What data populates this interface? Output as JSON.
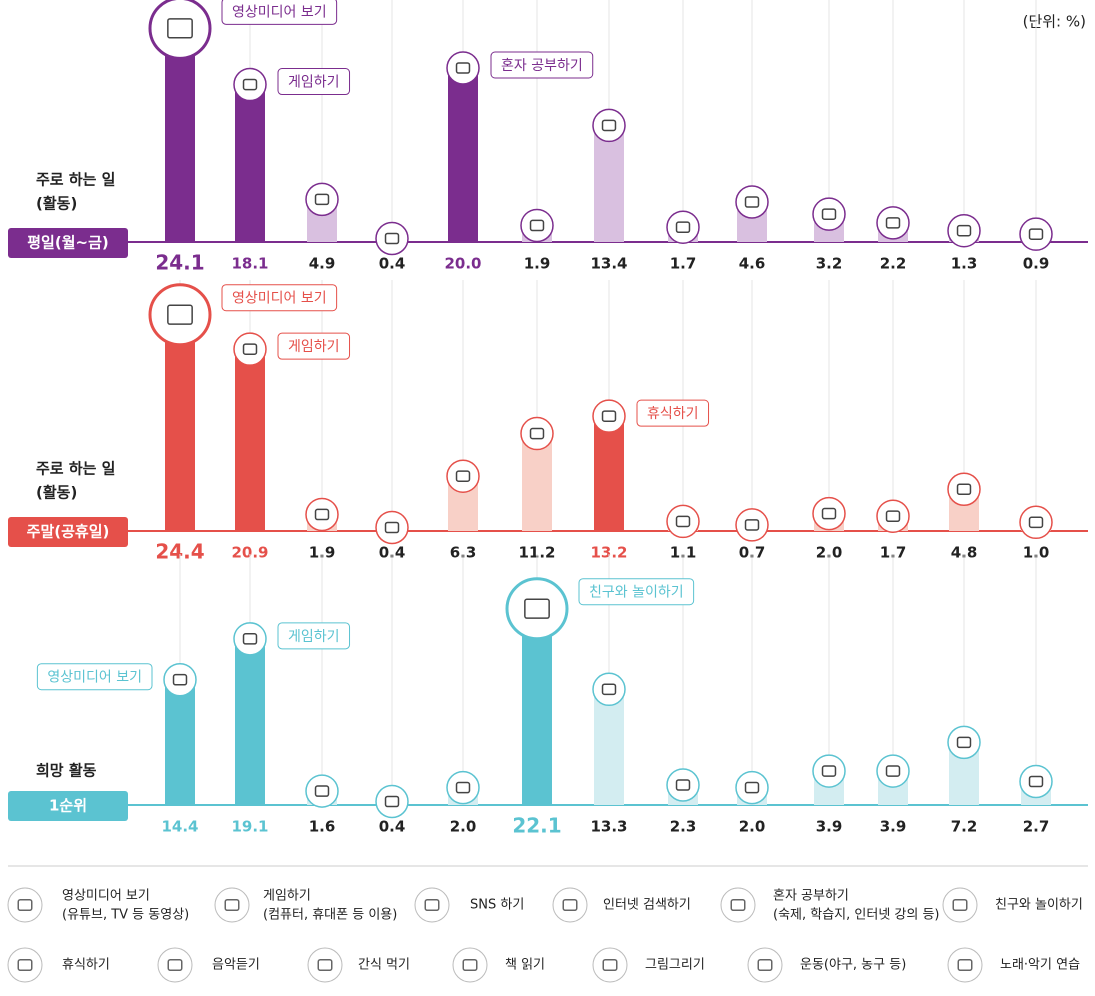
{
  "chart_data": {
    "type": "bar",
    "unit": "(단위: %)",
    "ylim": [
      0,
      30
    ],
    "legend": [
      {
        "name": "영상미디어 보기",
        "sub": "(유튜브, TV 등 동영상)"
      },
      {
        "name": "게임하기",
        "sub": "(컴퓨터, 휴대폰 등 이용)"
      },
      {
        "name": "SNS 하기"
      },
      {
        "name": "인터넷 검색하기"
      },
      {
        "name": "혼자 공부하기",
        "sub": "(숙제, 학습지, 인터넷 강의 등)"
      },
      {
        "name": "친구와 놀이하기"
      },
      {
        "name": "휴식하기"
      },
      {
        "name": "음악듣기"
      },
      {
        "name": "간식 먹기"
      },
      {
        "name": "책 읽기"
      },
      {
        "name": "그림그리기"
      },
      {
        "name": "운동(야구, 농구 등)"
      },
      {
        "name": "노래·악기 연습"
      }
    ],
    "panels": [
      {
        "label": [
          "주로 하는 일",
          "(활동)"
        ],
        "badge": "평일(월~금)",
        "color": "#7b2d8e",
        "light": "#d9c0e0",
        "values": [
          24.1,
          18.1,
          4.9,
          0.4,
          20.0,
          1.9,
          13.4,
          1.7,
          4.6,
          3.2,
          2.2,
          1.3,
          0.9
        ],
        "value_labels": [
          "24.1",
          "18.1",
          "4.9",
          "0.4",
          "20.0",
          "1.9",
          "13.4",
          "1.7",
          "4.6",
          "3.2",
          "2.2",
          "1.3",
          "0.9"
        ],
        "top": 0,
        "highlight": [
          0,
          1,
          4
        ],
        "callouts": [
          {
            "category": 0,
            "text": "영상미디어 보기"
          },
          {
            "category": 1,
            "text": "게임하기"
          },
          {
            "category": 4,
            "text": "혼자 공부하기"
          }
        ]
      },
      {
        "label": [
          "주로 하는 일",
          "(활동)"
        ],
        "badge": "주말(공휴일)",
        "color": "#e5504a",
        "light": "#f8d0c7",
        "values": [
          24.4,
          20.9,
          1.9,
          0.4,
          6.3,
          11.2,
          13.2,
          1.1,
          0.7,
          2.0,
          1.7,
          4.8,
          1.0
        ],
        "value_labels": [
          "24.4",
          "20.9",
          "1.9",
          "0.4",
          "6.3",
          "11.2",
          "13.2",
          "1.1",
          "0.7",
          "2.0",
          "1.7",
          "4.8",
          "1.0"
        ],
        "top": 0,
        "highlight": [
          0,
          1,
          6
        ],
        "callouts": [
          {
            "category": 0,
            "text": "영상미디어 보기"
          },
          {
            "category": 1,
            "text": "게임하기"
          },
          {
            "category": 6,
            "text": "휴식하기"
          }
        ]
      },
      {
        "label": [
          "희망 활동"
        ],
        "badge": "1순위",
        "color": "#5bc3d1",
        "light": "#d3edf1",
        "values": [
          14.4,
          19.1,
          1.6,
          0.4,
          2.0,
          22.1,
          13.3,
          2.3,
          2.0,
          3.9,
          3.9,
          7.2,
          2.7
        ],
        "value_labels": [
          "14.4",
          "19.1",
          "1.6",
          "0.4",
          "2.0",
          "22.1",
          "13.3",
          "2.3",
          "2.0",
          "3.9",
          "3.9",
          "7.2",
          "2.7"
        ],
        "top": 5,
        "highlight": [
          0,
          1,
          5
        ],
        "callouts": [
          {
            "category": 0,
            "text": "영상미디어 보기"
          },
          {
            "category": 1,
            "text": "게임하기"
          },
          {
            "category": 5,
            "text": "친구와 놀이하기"
          }
        ]
      }
    ]
  }
}
